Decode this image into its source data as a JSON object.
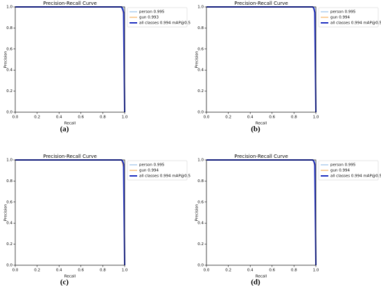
{
  "chart_data": [
    {
      "type": "line",
      "caption": "(a)",
      "title": "Precision-Recall Curve",
      "x_label": "Recall",
      "y_label": "Precision",
      "x": [
        0,
        0.97,
        0.98,
        0.99,
        1.0
      ],
      "series": [
        {
          "name": "person 0.995",
          "color": "#86b6e6",
          "width": 1,
          "values": [
            1,
            1,
            1,
            0.98,
            0
          ]
        },
        {
          "name": "gun 0.993",
          "color": "#f5a23c",
          "width": 1,
          "values": [
            1,
            1,
            0.97,
            0.92,
            0
          ]
        },
        {
          "name": "all classes 0.994 mAP@0.5",
          "color": "#1e2fc0",
          "width": 2,
          "values": [
            1,
            1,
            0.98,
            0.95,
            0
          ]
        }
      ],
      "xlim": [
        0,
        1
      ],
      "ylim": [
        0,
        1
      ],
      "xticks": [
        {
          "value": 0,
          "label": "0.0"
        },
        0.2,
        0.4,
        0.6,
        0.8,
        {
          "value": 1,
          "label": "1.0"
        }
      ],
      "yticks": [
        {
          "value": 0,
          "label": "0.0"
        },
        0.2,
        0.4,
        0.6,
        0.8,
        {
          "value": 1,
          "label": "1.0"
        }
      ],
      "legend": "upper right outside"
    },
    {
      "type": "line",
      "caption": "(b)",
      "title": "Precision-Recall Curve",
      "x_label": "Recall",
      "y_label": "Precision",
      "x": [
        0,
        0.97,
        0.98,
        0.99,
        1.0
      ],
      "series": [
        {
          "name": "person 0.995",
          "color": "#86b6e6",
          "width": 1,
          "values": [
            1,
            1,
            1,
            0.98,
            0
          ]
        },
        {
          "name": "gun 0.994",
          "color": "#f5a23c",
          "width": 1,
          "values": [
            1,
            1,
            0.98,
            0.93,
            0
          ]
        },
        {
          "name": "all classes 0.994 mAP@0.5",
          "color": "#1e2fc0",
          "width": 2,
          "values": [
            1,
            1,
            0.99,
            0.95,
            0
          ]
        }
      ],
      "xlim": [
        0,
        1
      ],
      "ylim": [
        0,
        1
      ],
      "xticks": [
        {
          "value": 0,
          "label": "0.0"
        },
        0.2,
        0.4,
        0.6,
        0.8,
        {
          "value": 1,
          "label": "1.0"
        }
      ],
      "yticks": [
        {
          "value": 0,
          "label": "0.0"
        },
        0.2,
        0.4,
        0.6,
        0.8,
        {
          "value": 1,
          "label": "1.0"
        }
      ],
      "legend": "upper right outside"
    },
    {
      "type": "line",
      "caption": "(c)",
      "title": "Precision-Recall Curve",
      "x_label": "Recall",
      "y_label": "Precision",
      "x": [
        0,
        0.97,
        0.98,
        0.99,
        1.0
      ],
      "series": [
        {
          "name": "person 0.995",
          "color": "#86b6e6",
          "width": 1,
          "values": [
            1,
            1,
            1,
            0.98,
            0
          ]
        },
        {
          "name": "gun 0.994",
          "color": "#f5a23c",
          "width": 1,
          "values": [
            1,
            1,
            0.97,
            0.92,
            0
          ]
        },
        {
          "name": "all classes 0.994 mAP@0.5",
          "color": "#1e2fc0",
          "width": 2,
          "values": [
            1,
            1,
            0.99,
            0.96,
            0
          ]
        }
      ],
      "xlim": [
        0,
        1
      ],
      "ylim": [
        0,
        1
      ],
      "xticks": [
        {
          "value": 0,
          "label": "0.0"
        },
        0.2,
        0.4,
        0.6,
        0.8,
        {
          "value": 1,
          "label": "1.0"
        }
      ],
      "yticks": [
        {
          "value": 0,
          "label": "0.0"
        },
        0.2,
        0.4,
        0.6,
        0.8,
        {
          "value": 1,
          "label": "1.0"
        }
      ],
      "legend": "upper right outside"
    },
    {
      "type": "line",
      "caption": "(d)",
      "title": "Precision-Recall Curve",
      "x_label": "Recall",
      "y_label": "Precision",
      "x": [
        0,
        0.97,
        0.98,
        0.99,
        1.0
      ],
      "series": [
        {
          "name": "person 0.995",
          "color": "#86b6e6",
          "width": 1,
          "values": [
            1,
            1,
            1,
            0.98,
            0
          ]
        },
        {
          "name": "gun 0.994",
          "color": "#f5a23c",
          "width": 1,
          "values": [
            1,
            1,
            0.98,
            0.93,
            0
          ]
        },
        {
          "name": "all classes 0.994 mAP@0.5",
          "color": "#1e2fc0",
          "width": 2,
          "values": [
            1,
            1,
            0.99,
            0.96,
            0
          ]
        }
      ],
      "xlim": [
        0,
        1
      ],
      "ylim": [
        0,
        1
      ],
      "xticks": [
        {
          "value": 0,
          "label": "0.0"
        },
        0.2,
        0.4,
        0.6,
        0.8,
        {
          "value": 1,
          "label": "1.0"
        }
      ],
      "yticks": [
        {
          "value": 0,
          "label": "0.0"
        },
        0.2,
        0.4,
        0.6,
        0.8,
        {
          "value": 1,
          "label": "1.0"
        }
      ],
      "legend": "upper right outside"
    }
  ]
}
